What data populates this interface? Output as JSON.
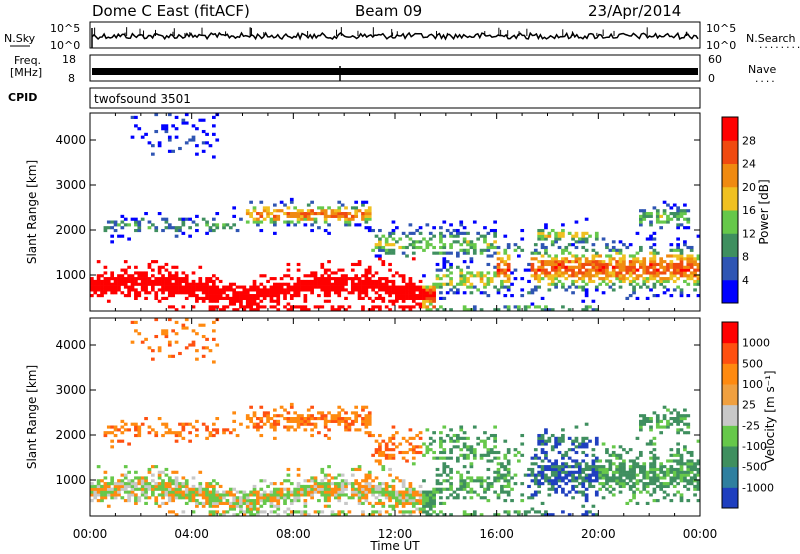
{
  "header": {
    "station": "Dome C East (fitACF)",
    "beam": "Beam 09",
    "date": "23/Apr/2014"
  },
  "noise_panel": {
    "left_label": "N.Sky",
    "right_label": "N.Search",
    "tick_top": "10^5",
    "tick_bottom": "10^0",
    "right_dots": "........"
  },
  "freq_panel": {
    "left_label_line1": "Freq.",
    "left_label_line2": "[MHz]",
    "left_tick_top": "18",
    "left_tick_bottom": "8",
    "right_label": "Nave",
    "right_tick_top": "60",
    "right_tick_bottom": "0",
    "right_dots": "...."
  },
  "cpid_panel": {
    "label": "CPID",
    "program": "twofsound 3501"
  },
  "colors": {
    "power_scale": [
      "#0000ff",
      "#2f55b3",
      "#3f8f5f",
      "#66c84a",
      "#f0c020",
      "#f08a10",
      "#f04a10",
      "#ff0000"
    ],
    "velocity_scale": [
      "#ff0000",
      "#ff5010",
      "#ff8a10",
      "#f0a040",
      "#c8c8c8",
      "#66c84a",
      "#3f8f5f",
      "#2f7f9f",
      "#1f3fbf"
    ]
  },
  "chart_data": [
    {
      "type": "heatmap",
      "name": "power",
      "ylabel": "Slant Range [km]",
      "ylim": [
        200,
        4600
      ],
      "xlim_hours": [
        0,
        24
      ],
      "x_ticks": [
        "00:00",
        "04:00",
        "08:00",
        "12:00",
        "16:00",
        "20:00",
        "00:00"
      ],
      "y_ticks": [
        1000,
        2000,
        3000,
        4000
      ],
      "colorbar_label": "Power [dB]",
      "colorbar_ticks": [
        "4",
        "8",
        "12",
        "16",
        "20",
        "24",
        "28"
      ],
      "colorbar_range": [
        0,
        32
      ]
    },
    {
      "type": "heatmap",
      "name": "velocity",
      "ylabel": "Slant Range [km]",
      "xlabel": "Time UT",
      "ylim": [
        200,
        4600
      ],
      "xlim_hours": [
        0,
        24
      ],
      "x_ticks": [
        "00:00",
        "04:00",
        "08:00",
        "12:00",
        "16:00",
        "20:00",
        "00:00"
      ],
      "y_ticks": [
        1000,
        2000,
        3000,
        4000
      ],
      "colorbar_label": "Velocity [m s⁻¹]",
      "colorbar_ticks": [
        "1000",
        "500",
        "100",
        "25",
        "-25",
        "-100",
        "-500",
        "-1000"
      ]
    }
  ]
}
